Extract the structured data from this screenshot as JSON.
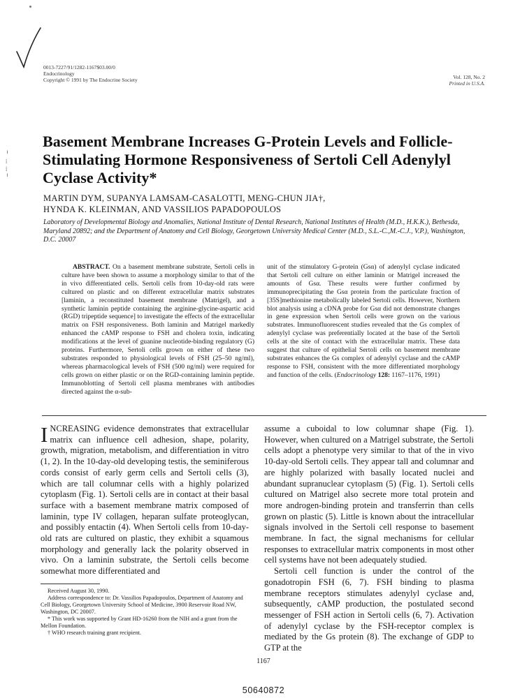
{
  "header": {
    "issn_line": "0013-7227/91/1282-1167$03.00/0",
    "journal": "Endocrinology",
    "copyright": "Copyright © 1991 by The Endocrine Society",
    "volume": "Vol. 128, No. 2",
    "printed": "Printed in U.S.A."
  },
  "title": "Basement Membrane Increases G-Protein Levels and Follicle-Stimulating Hormone Responsiveness of Sertoli Cell Adenylyl Cyclase Activity*",
  "authors": {
    "line1": "MARTIN DYM, SUPANYA LAMSAM-CASALOTTI, MENG-CHUN JIA†,",
    "line2": "HYNDA K. KLEINMAN, AND VASSILIOS PAPADOPOULOS"
  },
  "affiliation": "Laboratory of Developmental Biology and Anomalies, National Institute of Dental Research, National Institutes of Health (M.D., H.K.K.), Bethesda, Maryland 20892; and the Department of Anatomy and Cell Biology, Georgetown University Medical Center (M.D., S.L.-C.,M.-C.J., V.P.), Washington, D.C. 20007",
  "abstract": {
    "heading": "ABSTRACT.",
    "left": "On a basement membrane substrate, Sertoli cells in culture have been shown to assume a morphology similar to that of the in vivo differentiated cells. Sertoli cells from 10-day-old rats were cultured on plastic and on different extracellular matrix substrates [laminin, a reconstituted basement membrane (Matrigel), and a synthetic laminin peptide containing the arginine-glycine-aspartic acid (RGD) tripeptide sequence] to investigate the effects of the extracellular matrix on FSH responsiveness. Both laminin and Matrigel markedly enhanced the cAMP response to FSH and cholera toxin, indicating modifications at the level of guanine nucleotide-binding regulatory (G) proteins. Furthermore, Sertoli cells grown on either of these two substrates responded to physiological levels of FSH (25–50 ng/ml), whereas pharmacological levels of FSH (500 ng/ml) were required for cells grown on either plastic or on the RGD-containing laminin peptide. Immunoblotting of Sertoli cell plasma membranes with antibodies directed against the α-sub-",
    "right_before": "unit of the stimulatory G-protein (Gsα) of adenylyl cyclase indicated that Sertoli cell culture on either laminin or Matrigel increased the amounts of Gsα. These results were further confirmed by immunoprecipitating the Gsα protein from the particulate fraction of [35S]methionine metabolically labeled Sertoli cells. However, Northern blot analysis using a cDNA probe for Gsα did not demonstrate changes in gene expression when Sertoli cells were grown on the various substrates. Immunofluorescent studies revealed that the Gs complex of adenylyl cyclase was preferentially located at the base of the Sertoli cells at the site of contact with the extracellular matrix. These data suggest that culture of epithelial Sertoli cells on basement membrane substrates enhances the Gs complex of adenylyl cyclase and the cAMP response to FSH, consistent with the more differentiated morphology and function of the cells.",
    "citation_journal": "Endocrinology",
    "citation_vol": "128:",
    "citation_pages": "1167–1176, 1991)"
  },
  "body": {
    "dropcap": "I",
    "left_p1": "NCREASING evidence demonstrates that extracellular matrix can influence cell adhesion, shape, polarity, growth, migration, metabolism, and differentiation in vitro (1, 2). In the 10-day-old developing testis, the seminiferous cords consist of early germ cells and Sertoli cells (3), which are tall columnar cells with a highly polarized cytoplasm (Fig. 1). Sertoli cells are in contact at their basal surface with a basement membrane matrix composed of laminin, type IV collagen, heparan sulfate proteoglycan, and possibly entactin (4). When Sertoli cells from 10-day-old rats are cultured on plastic, they exhibit a squamous morphology and generally lack the polarity observed in vivo. On a laminin substrate, the Sertoli cells become somewhat more differentiated and",
    "right_p1": "assume a cuboidal to low columnar shape (Fig. 1). However, when cultured on a Matrigel substrate, the Sertoli cells adopt a phenotype very similar to that of the in vivo 10-day-old Sertoli cells. They appear tall and columnar and are highly polarized with basally located nuclei and abundant supranuclear cytoplasm (5) (Fig. 1). Sertoli cells cultured on Matrigel also secrete more total protein and more androgen-binding protein and transferrin than cells grown on plastic (5). Little is known about the intracellular signals involved in the Sertoli cell response to basement membrane. In fact, the signal mechanisms for cellular responses to extracellular matrix components in most other cell systems have not been adequately studied.",
    "right_p2": "Sertoli cell function is under the control of the gonadotropin FSH (6, 7). FSH binding to plasma membrane receptors stimulates adenylyl cyclase and, subsequently, cAMP production, the postulated second messenger of FSH action in Sertoli cells (6, 7). Activation of adenylyl cyclase by the FSH-receptor complex is mediated by the Gs protein (8). The exchange of GDP to GTP at the"
  },
  "footnotes": {
    "received": "Received August 30, 1990.",
    "address": "Address correspondence to: Dr. Vassilios Papadopoulos, Department of Anatomy and Cell Biology, Georgetown University School of Medicine, 3900 Reservoir Road NW, Washington, DC 20007.",
    "support": "* This work was supported by Grant HD-16260 from the NIH and a grant from the Mellon Foundation.",
    "who": "† WHO research training grant recipient."
  },
  "page_number": "1167",
  "document_id": "50640872"
}
